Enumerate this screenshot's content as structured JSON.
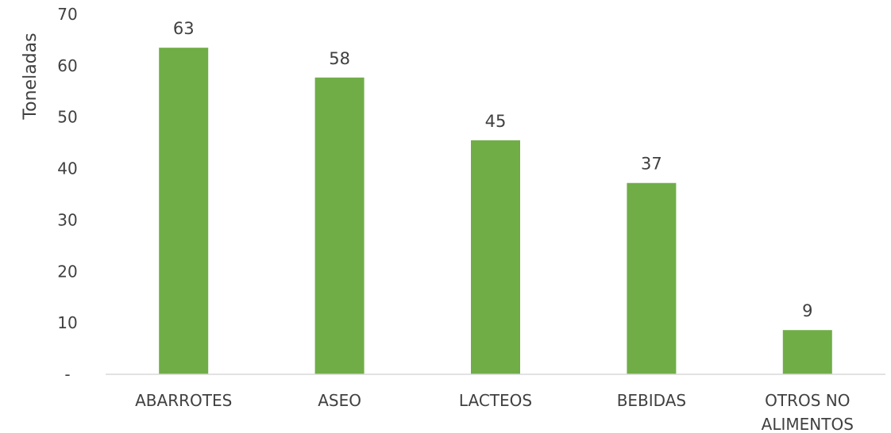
{
  "chart_data": {
    "type": "bar",
    "title": "",
    "xlabel": "",
    "ylabel": "Toneladas",
    "categories": [
      [
        "ABARROTES"
      ],
      [
        "ASEO"
      ],
      [
        "LACTEOS"
      ],
      [
        "BEBIDAS"
      ],
      [
        "OTROS NO",
        "ALIMENTOS"
      ]
    ],
    "values": [
      63.5,
      57.7,
      45.5,
      37.2,
      8.6
    ],
    "data_labels": [
      "63",
      "58",
      "45",
      "37",
      "9"
    ],
    "ylim": [
      0,
      70
    ],
    "yticks": [
      0,
      10,
      20,
      30,
      40,
      50,
      60,
      70
    ],
    "ytick_labels": [
      "-",
      "10",
      "20",
      "30",
      "40",
      "50",
      "60",
      "70"
    ],
    "grid": false,
    "legend": "none",
    "colors": {
      "bar": "#70ad47",
      "axis": "#d9d9d9",
      "text": "#404040"
    }
  }
}
